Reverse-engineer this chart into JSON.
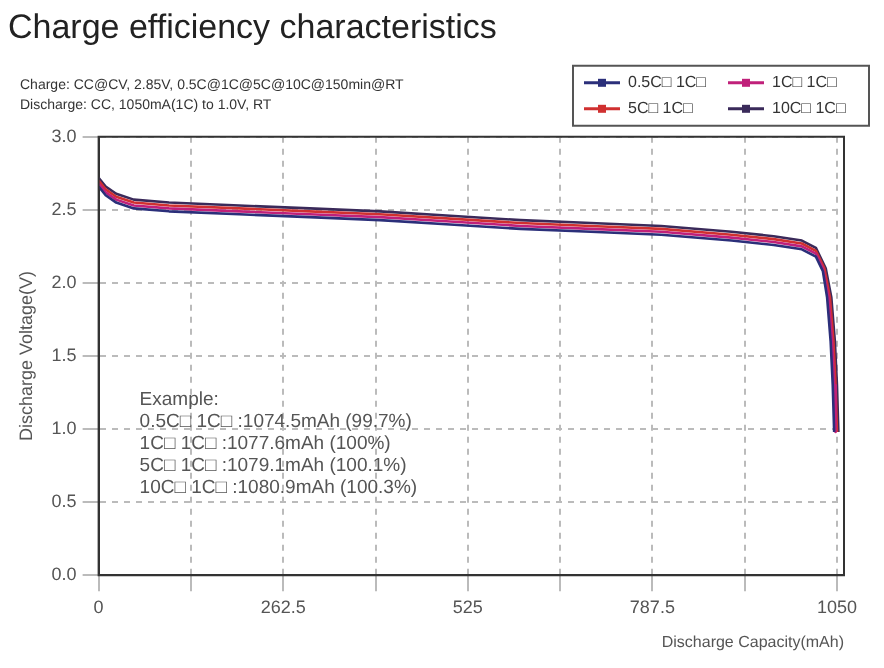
{
  "chart_data": {
    "type": "line",
    "title": "Charge efficiency characteristics",
    "xlabel": "Discharge Capacity(mAh)",
    "ylabel": "Discharge Voltage(V)",
    "series": [
      {
        "name": "0.5C□ 1C□",
        "color": "#2b2f7a",
        "x": [
          0,
          10,
          25,
          50,
          100,
          200,
          300,
          400,
          500,
          600,
          700,
          800,
          900,
          960,
          1000,
          1020,
          1030,
          1036,
          1041,
          1044,
          1046
        ],
        "values": [
          2.66,
          2.6,
          2.55,
          2.51,
          2.49,
          2.47,
          2.45,
          2.43,
          2.4,
          2.37,
          2.35,
          2.33,
          2.29,
          2.26,
          2.23,
          2.18,
          2.08,
          1.9,
          1.6,
          1.3,
          0.98
        ]
      },
      {
        "name": "1C□ 1C□",
        "color": "#c0207a",
        "x": [
          0,
          10,
          25,
          50,
          100,
          200,
          300,
          400,
          500,
          600,
          700,
          800,
          900,
          960,
          1000,
          1020,
          1030,
          1038,
          1043,
          1046,
          1048
        ],
        "values": [
          2.68,
          2.62,
          2.57,
          2.53,
          2.51,
          2.49,
          2.47,
          2.45,
          2.42,
          2.39,
          2.37,
          2.35,
          2.31,
          2.28,
          2.25,
          2.2,
          2.1,
          1.9,
          1.6,
          1.3,
          0.98
        ]
      },
      {
        "name": "5C□ 1C□",
        "color": "#d03030",
        "x": [
          0,
          10,
          25,
          50,
          100,
          200,
          300,
          400,
          500,
          600,
          700,
          800,
          900,
          960,
          1000,
          1020,
          1032,
          1040,
          1045,
          1048,
          1050
        ],
        "values": [
          2.7,
          2.64,
          2.59,
          2.55,
          2.53,
          2.51,
          2.49,
          2.47,
          2.44,
          2.41,
          2.39,
          2.37,
          2.33,
          2.3,
          2.27,
          2.22,
          2.1,
          1.9,
          1.6,
          1.3,
          0.98
        ]
      },
      {
        "name": "10C□ 1C□",
        "color": "#3a2a5a",
        "x": [
          0,
          10,
          25,
          50,
          100,
          200,
          300,
          400,
          500,
          600,
          700,
          800,
          900,
          960,
          1000,
          1020,
          1034,
          1042,
          1047,
          1050,
          1052
        ],
        "values": [
          2.72,
          2.66,
          2.61,
          2.57,
          2.55,
          2.53,
          2.51,
          2.49,
          2.46,
          2.43,
          2.41,
          2.39,
          2.35,
          2.32,
          2.29,
          2.24,
          2.1,
          1.9,
          1.6,
          1.3,
          0.98
        ]
      }
    ],
    "xlim": [
      0,
      1060
    ],
    "xticks": [
      0,
      {
        "value": 131.25,
        "label": null
      },
      262.5,
      {
        "value": 393.75,
        "label": null
      },
      525,
      {
        "value": 656.25,
        "label": null
      },
      787.5,
      {
        "value": 918.75,
        "label": null
      },
      1050
    ],
    "ylim": [
      0,
      3
    ],
    "yticks": [
      {
        "value": 0,
        "label": "0.0"
      },
      0.5,
      {
        "value": 1,
        "label": "1.0"
      },
      1.5,
      {
        "value": 2,
        "label": "2.0"
      },
      2.5,
      {
        "value": 3,
        "label": "3.0"
      }
    ],
    "grid": true,
    "legend": "top right",
    "line_style": "solid",
    "annotations": [
      "Charge: CC@CV, 2.85V, 0.5C@1C@5C@10C@150min@RT",
      "Discharge: CC, 1050mA(1C) to 1.0V, RT",
      "Example:",
      "0.5C□ 1C□ :1074.5mAh (99.7%)",
      "1C□ 1C□ :1077.6mAh (100%)",
      "5C□ 1C□ :1079.1mAh (100.1%)",
      "10C□ 1C□ :1080.9mAh (100.3%)"
    ]
  }
}
